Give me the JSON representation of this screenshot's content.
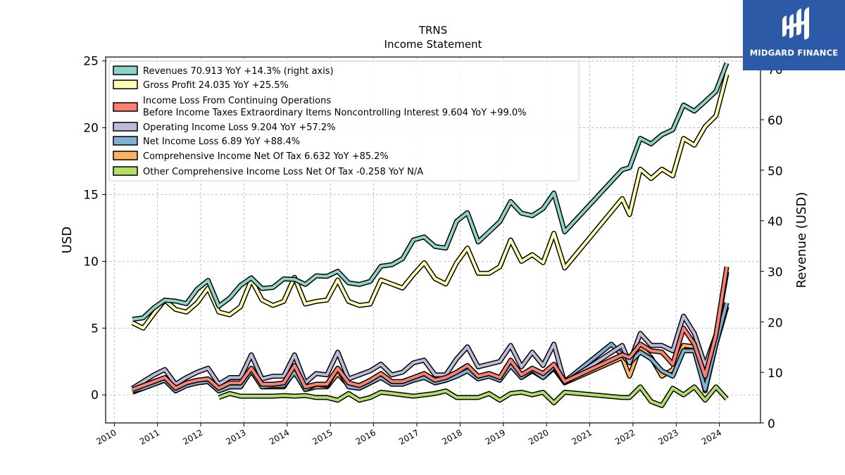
{
  "logo": {
    "text": "MIDGARD FINANCE",
    "color": "#2c5aa7"
  },
  "chart_data": {
    "type": "line",
    "title": "TRNS",
    "subtitle": "Income Statement",
    "ylabel": "USD",
    "ylabel_right": "Revenue (USD)",
    "ylim": [
      -2.1,
      25.3
    ],
    "ylim_right": [
      0,
      72.4
    ],
    "yticks": [
      0,
      5,
      10,
      15,
      20,
      25
    ],
    "yticks_right": [
      0,
      10,
      20,
      30,
      40,
      50,
      60,
      70
    ],
    "xlim": [
      2009.8,
      2024.95
    ],
    "xticks": [
      2010,
      2011,
      2012,
      2013,
      2014,
      2015,
      2016,
      2017,
      2018,
      2019,
      2020,
      2021,
      2022,
      2023,
      2024
    ],
    "grid": true,
    "legend_position": "top-left",
    "series": [
      {
        "name": "Revenues",
        "legend": "Revenues  70.913 YoY +14.3% (right axis)",
        "color": "#8dd3c7",
        "axis": "right",
        "x": [
          2010.42,
          2010.67,
          2010.92,
          2011.17,
          2011.42,
          2011.67,
          2011.92,
          2012.17,
          2012.42,
          2012.67,
          2012.92,
          2013.17,
          2013.42,
          2013.67,
          2013.92,
          2014.17,
          2014.42,
          2014.67,
          2014.92,
          2015.17,
          2015.42,
          2015.67,
          2015.92,
          2016.17,
          2016.42,
          2016.67,
          2016.92,
          2017.17,
          2017.42,
          2017.67,
          2017.92,
          2018.17,
          2018.42,
          2018.67,
          2018.92,
          2019.17,
          2019.42,
          2019.67,
          2019.92,
          2020.17,
          2020.42,
          2021.75,
          2021.92,
          2022.17,
          2022.42,
          2022.67,
          2022.92,
          2023.17,
          2023.42,
          2023.67,
          2023.92,
          2024.17
        ],
        "values": [
          20.5,
          20.8,
          22.8,
          24.3,
          24.1,
          23.6,
          26.5,
          28.2,
          23.1,
          24.7,
          27.2,
          28.7,
          26.6,
          26.8,
          28.5,
          28.4,
          27.4,
          29.1,
          29.0,
          30.0,
          27.7,
          27.4,
          28.0,
          31.0,
          31.3,
          32.5,
          36.2,
          36.8,
          34.9,
          34.6,
          39.9,
          41.6,
          35.8,
          37.8,
          39.8,
          43.8,
          41.5,
          41.0,
          42.4,
          45.5,
          37.8,
          50.1,
          50.5,
          56.3,
          55.2,
          57.0,
          58.0,
          62.9,
          61.7,
          63.6,
          65.6,
          71.2
        ]
      },
      {
        "name": "Gross Profit",
        "legend": "Gross Profit  24.035 YoY +25.5%",
        "color": "#ffffb3",
        "axis": "left",
        "x": [
          2010.42,
          2010.67,
          2010.92,
          2011.17,
          2011.42,
          2011.67,
          2011.92,
          2012.17,
          2012.42,
          2012.67,
          2012.92,
          2013.17,
          2013.42,
          2013.67,
          2013.92,
          2014.17,
          2014.42,
          2014.67,
          2014.92,
          2015.17,
          2015.42,
          2015.67,
          2015.92,
          2016.17,
          2016.42,
          2016.67,
          2016.92,
          2017.17,
          2017.42,
          2017.67,
          2017.92,
          2018.17,
          2018.42,
          2018.67,
          2018.92,
          2019.17,
          2019.42,
          2019.67,
          2019.92,
          2020.17,
          2020.42,
          2021.75,
          2021.92,
          2022.17,
          2022.42,
          2022.67,
          2022.92,
          2023.17,
          2023.42,
          2023.67,
          2023.92,
          2024.17
        ],
        "values": [
          5.4,
          5.0,
          6.1,
          7.1,
          6.4,
          6.2,
          6.9,
          8.0,
          6.2,
          6.0,
          6.6,
          8.6,
          7.1,
          6.7,
          7.0,
          8.8,
          6.8,
          7.0,
          7.1,
          8.6,
          7.0,
          6.7,
          6.8,
          8.6,
          8.3,
          8.0,
          9.0,
          9.9,
          8.7,
          8.3,
          9.9,
          11.0,
          9.1,
          9.1,
          9.6,
          11.6,
          10.0,
          10.5,
          9.9,
          12.1,
          9.5,
          14.7,
          13.5,
          16.9,
          16.2,
          16.9,
          16.4,
          19.2,
          18.7,
          20.1,
          20.9,
          24.0
        ]
      },
      {
        "name": "Income Loss From Continuing Operations Before Income Taxes Extraordinary Items Noncontrolling Interest",
        "legend": "Income Loss From Continuing Operations",
        "legend_line2": "Before Income Taxes Extraordinary Items Noncontrolling Interest  9.604 YoY +99.0%",
        "color": "#fb8072",
        "axis": "left",
        "x": [
          2010.42,
          2010.67,
          2010.92,
          2011.17,
          2011.42,
          2011.67,
          2011.92,
          2012.17,
          2012.42,
          2012.67,
          2012.92,
          2013.17,
          2013.42,
          2013.67,
          2013.92,
          2014.17,
          2014.42,
          2014.67,
          2014.92,
          2015.17,
          2015.42,
          2015.67,
          2015.92,
          2016.17,
          2016.42,
          2016.67,
          2016.92,
          2017.17,
          2017.42,
          2017.67,
          2017.92,
          2018.17,
          2018.42,
          2018.67,
          2018.92,
          2019.17,
          2019.42,
          2019.67,
          2019.92,
          2020.17,
          2020.42,
          2021.75,
          2021.92,
          2022.17,
          2022.42,
          2022.67,
          2022.92,
          2023.17,
          2023.42,
          2023.67,
          2023.92,
          2024.17
        ],
        "values": [
          0.4,
          0.7,
          1.0,
          1.3,
          0.5,
          0.9,
          1.1,
          1.2,
          0.5,
          0.9,
          0.9,
          2.0,
          0.8,
          0.8,
          0.9,
          2.2,
          0.6,
          0.8,
          0.8,
          2.0,
          0.9,
          0.7,
          1.1,
          1.6,
          1.0,
          1.0,
          1.3,
          1.6,
          1.1,
          1.3,
          1.7,
          2.2,
          1.4,
          1.6,
          1.3,
          2.6,
          1.5,
          2.0,
          1.6,
          2.3,
          1.0,
          3.0,
          2.8,
          3.8,
          3.3,
          3.2,
          2.3,
          5.0,
          3.8,
          1.4,
          4.5,
          9.6
        ]
      },
      {
        "name": "Operating Income Loss",
        "legend": "Operating Income Loss  9.204 YoY +57.2%",
        "color": "#bebada",
        "axis": "left",
        "x": [
          2010.42,
          2010.67,
          2010.92,
          2011.17,
          2011.42,
          2011.67,
          2011.92,
          2012.17,
          2012.42,
          2012.67,
          2012.92,
          2013.17,
          2013.42,
          2013.67,
          2013.92,
          2014.17,
          2014.42,
          2014.67,
          2014.92,
          2015.17,
          2015.42,
          2015.67,
          2015.92,
          2016.17,
          2016.42,
          2016.67,
          2016.92,
          2017.17,
          2017.42,
          2017.67,
          2017.92,
          2018.17,
          2018.42,
          2018.67,
          2018.92,
          2019.17,
          2019.42,
          2019.67,
          2019.92,
          2020.17,
          2020.42,
          2021.75,
          2021.92,
          2022.17,
          2022.42,
          2022.67,
          2022.92,
          2023.17,
          2023.42,
          2023.67,
          2023.92,
          2024.17
        ],
        "values": [
          0.5,
          1.0,
          1.5,
          1.9,
          0.8,
          1.3,
          1.7,
          2.0,
          0.8,
          1.3,
          1.3,
          3.0,
          1.2,
          1.4,
          1.4,
          3.0,
          0.9,
          1.6,
          1.5,
          3.2,
          1.2,
          1.5,
          1.8,
          2.3,
          1.5,
          1.7,
          2.4,
          2.6,
          1.5,
          1.5,
          2.7,
          3.6,
          2.1,
          2.3,
          2.5,
          3.7,
          2.1,
          3.2,
          2.2,
          3.8,
          0.9,
          3.7,
          2.4,
          4.6,
          3.7,
          3.7,
          3.3,
          5.9,
          4.6,
          2.2,
          4.5,
          9.2
        ]
      },
      {
        "name": "Net Income Loss",
        "legend": "Net Income Loss  6.89 YoY +88.4%",
        "color": "#80b1d3",
        "axis": "left",
        "x": [
          2010.42,
          2010.67,
          2010.92,
          2011.17,
          2011.42,
          2011.67,
          2011.92,
          2012.17,
          2012.42,
          2012.67,
          2012.92,
          2013.17,
          2013.42,
          2013.67,
          2013.92,
          2014.17,
          2014.42,
          2014.67,
          2014.92,
          2015.17,
          2015.42,
          2015.67,
          2015.92,
          2016.17,
          2016.42,
          2016.67,
          2016.92,
          2017.17,
          2017.42,
          2017.67,
          2017.92,
          2018.17,
          2018.42,
          2018.67,
          2018.92,
          2019.17,
          2019.42,
          2019.67,
          2019.92,
          2020.17,
          2020.42,
          2021.5,
          2021.92,
          2022.17,
          2022.42,
          2022.67,
          2022.92,
          2023.17,
          2023.42,
          2023.67,
          2023.92,
          2024.17
        ],
        "values": [
          0.3,
          0.5,
          0.8,
          1.1,
          0.3,
          0.7,
          0.9,
          1.0,
          0.3,
          0.6,
          0.6,
          1.8,
          0.6,
          0.7,
          0.7,
          1.7,
          0.4,
          0.8,
          0.7,
          2.0,
          0.6,
          0.5,
          0.9,
          1.3,
          0.8,
          0.8,
          1.1,
          1.3,
          0.9,
          1.1,
          1.4,
          1.8,
          1.2,
          1.4,
          1.1,
          2.2,
          1.3,
          1.9,
          1.3,
          2.1,
          1.0,
          3.8,
          2.4,
          3.2,
          2.7,
          1.8,
          1.4,
          3.3,
          3.3,
          0.4,
          3.8,
          6.9
        ]
      },
      {
        "name": "Comprehensive Income Net Of Tax",
        "legend": "Comprehensive Income Net Of Tax  6.632 YoY +85.2%",
        "color": "#fdb462",
        "axis": "left",
        "x": [
          2010.42,
          2010.67,
          2010.92,
          2011.17,
          2011.42,
          2011.67,
          2011.92,
          2012.17,
          2012.42,
          2012.67,
          2012.92,
          2013.17,
          2013.42,
          2013.67,
          2013.92,
          2014.17,
          2014.42,
          2014.67,
          2014.92,
          2015.17,
          2015.42,
          2015.67,
          2015.92,
          2016.17,
          2016.42,
          2016.67,
          2016.92,
          2017.17,
          2017.42,
          2017.67,
          2017.92,
          2018.17,
          2018.42,
          2018.67,
          2018.92,
          2019.17,
          2019.42,
          2019.67,
          2019.92,
          2020.17,
          2020.42,
          2021.75,
          2021.92,
          2022.17,
          2022.42,
          2022.67,
          2022.92,
          2023.17,
          2023.42,
          2023.67,
          2023.92,
          2024.17
        ],
        "values": [
          0.2,
          0.5,
          0.8,
          1.1,
          0.3,
          0.7,
          0.9,
          1.0,
          0.3,
          0.6,
          0.6,
          1.9,
          0.6,
          0.6,
          0.6,
          1.8,
          0.4,
          0.6,
          0.6,
          1.6,
          0.7,
          0.5,
          0.9,
          1.5,
          0.8,
          0.8,
          1.1,
          1.4,
          0.9,
          1.1,
          1.5,
          2.0,
          1.3,
          1.5,
          1.1,
          2.4,
          1.3,
          1.8,
          1.3,
          2.0,
          0.9,
          2.8,
          1.4,
          3.6,
          2.8,
          1.4,
          1.9,
          3.7,
          3.6,
          0.3,
          3.8,
          6.6
        ]
      },
      {
        "name": "Other Comprehensive Income Loss Net Of Tax",
        "legend": "Other Comprehensive Income Loss Net Of Tax  -0.258 YoY N/A",
        "color": "#b3de69",
        "axis": "left",
        "x": [
          2012.42,
          2012.67,
          2012.92,
          2013.17,
          2013.42,
          2013.67,
          2013.92,
          2014.17,
          2014.42,
          2014.67,
          2014.92,
          2015.17,
          2015.42,
          2015.67,
          2015.92,
          2016.17,
          2016.42,
          2016.67,
          2016.92,
          2017.17,
          2017.42,
          2017.67,
          2017.92,
          2018.17,
          2018.42,
          2018.67,
          2018.92,
          2019.17,
          2019.42,
          2019.67,
          2019.92,
          2020.17,
          2020.42,
          2021.75,
          2021.92,
          2022.17,
          2022.42,
          2022.67,
          2022.92,
          2023.17,
          2023.42,
          2023.67,
          2023.92,
          2024.17
        ],
        "values": [
          -0.2,
          0.1,
          -0.1,
          -0.1,
          -0.1,
          -0.1,
          -0.05,
          -0.1,
          -0.05,
          -0.2,
          -0.2,
          -0.4,
          0.1,
          -0.4,
          -0.2,
          0.2,
          0.1,
          0.0,
          -0.1,
          0.0,
          0.1,
          0.3,
          -0.2,
          -0.2,
          -0.2,
          0.1,
          -0.4,
          0.1,
          0.2,
          0.0,
          0.2,
          -0.6,
          0.2,
          -0.2,
          -0.2,
          0.6,
          -0.5,
          -0.8,
          0.5,
          0.0,
          0.6,
          -0.4,
          0.6,
          -0.3
        ]
      }
    ]
  }
}
